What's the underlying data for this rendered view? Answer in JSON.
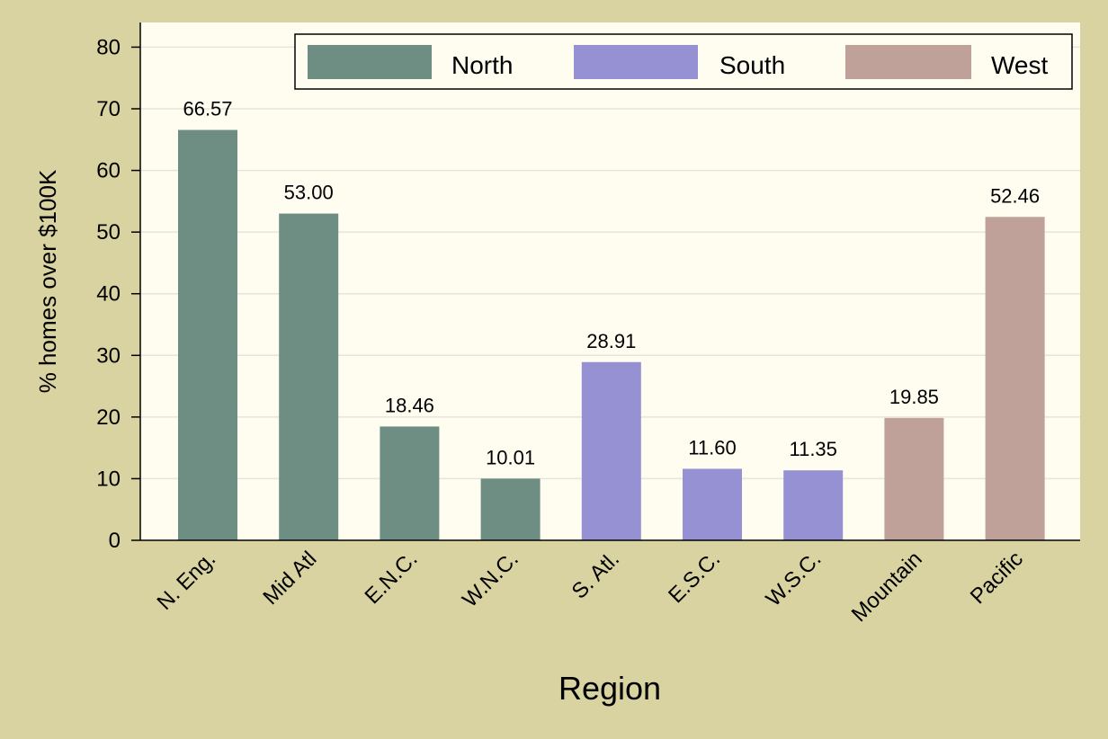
{
  "chart_data": {
    "type": "bar",
    "xlabel": "Region",
    "ylabel": "% homes over $100K",
    "ylim": [
      0,
      84
    ],
    "yticks": [
      0,
      10,
      20,
      30,
      40,
      50,
      60,
      70,
      80
    ],
    "grid": true,
    "legend_position": "top-right",
    "categories": [
      "N. Eng.",
      "Mid Atl",
      "E.N.C.",
      "W.N.C.",
      "S. Atl.",
      "E.S.C.",
      "W.S.C.",
      "Mountain",
      "Pacific"
    ],
    "values": [
      66.57,
      53.0,
      18.46,
      10.01,
      28.91,
      11.6,
      11.35,
      19.85,
      52.46
    ],
    "value_labels": [
      "66.57",
      "53.00",
      "18.46",
      "10.01",
      "28.91",
      "11.60",
      "11.35",
      "19.85",
      "52.46"
    ],
    "groups": [
      "North",
      "North",
      "North",
      "North",
      "South",
      "South",
      "South",
      "West",
      "West"
    ],
    "legend": [
      {
        "name": "North",
        "color": "#6e8e83"
      },
      {
        "name": "South",
        "color": "#9591d3"
      },
      {
        "name": "West",
        "color": "#bfa19a"
      }
    ]
  },
  "colors": {
    "background": "#d9d3a1",
    "plot_area": "#fffcf0",
    "grid": "#e6e5dc"
  }
}
